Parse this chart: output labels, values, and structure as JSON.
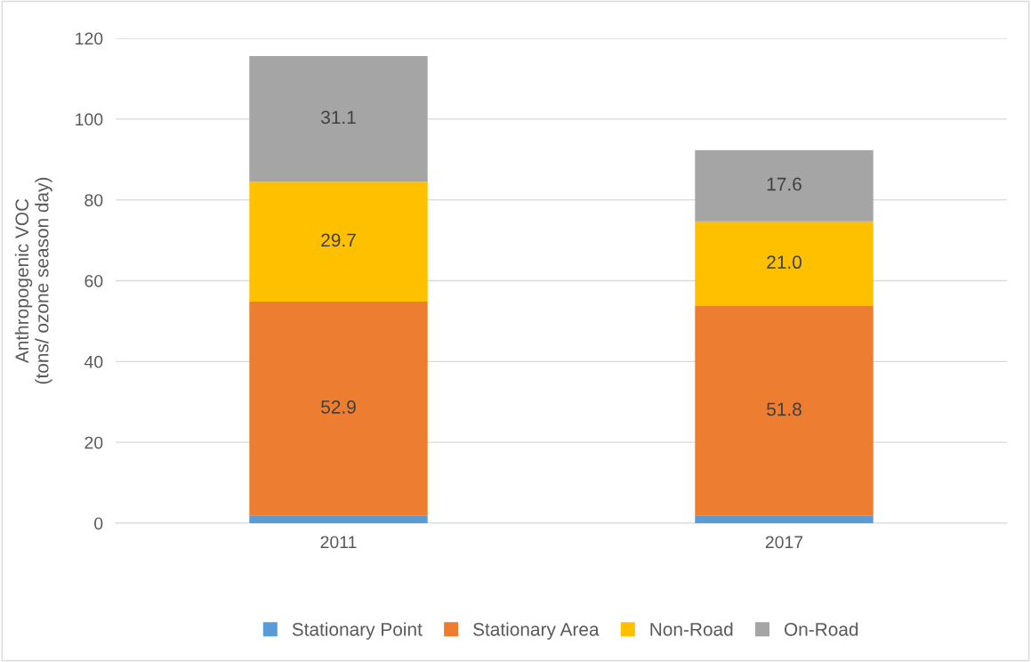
{
  "chart_data": {
    "type": "bar",
    "stacked": true,
    "ylabel": "Anthropogenic VOC\n(tons/ ozone season day)",
    "categories": [
      "2011",
      "2017"
    ],
    "series": [
      {
        "name": "Stationary Point",
        "color": "#5b9bd5",
        "values": [
          1.9,
          1.9
        ]
      },
      {
        "name": "Stationary Area",
        "color": "#ed7d31",
        "values": [
          52.9,
          51.8
        ],
        "value_labels": [
          "52.9",
          "51.8"
        ]
      },
      {
        "name": "Non-Road",
        "color": "#ffc000",
        "values": [
          29.7,
          21.0
        ],
        "value_labels": [
          "29.7",
          "21.0"
        ]
      },
      {
        "name": "On-Road",
        "color": "#a5a5a5",
        "values": [
          31.1,
          17.6
        ],
        "value_labels": [
          "31.1",
          "17.6"
        ]
      }
    ],
    "ylim": [
      0,
      120
    ],
    "yticks": [
      0,
      20,
      40,
      60,
      80,
      100,
      120
    ],
    "grid": "y",
    "legend": "bottom"
  }
}
